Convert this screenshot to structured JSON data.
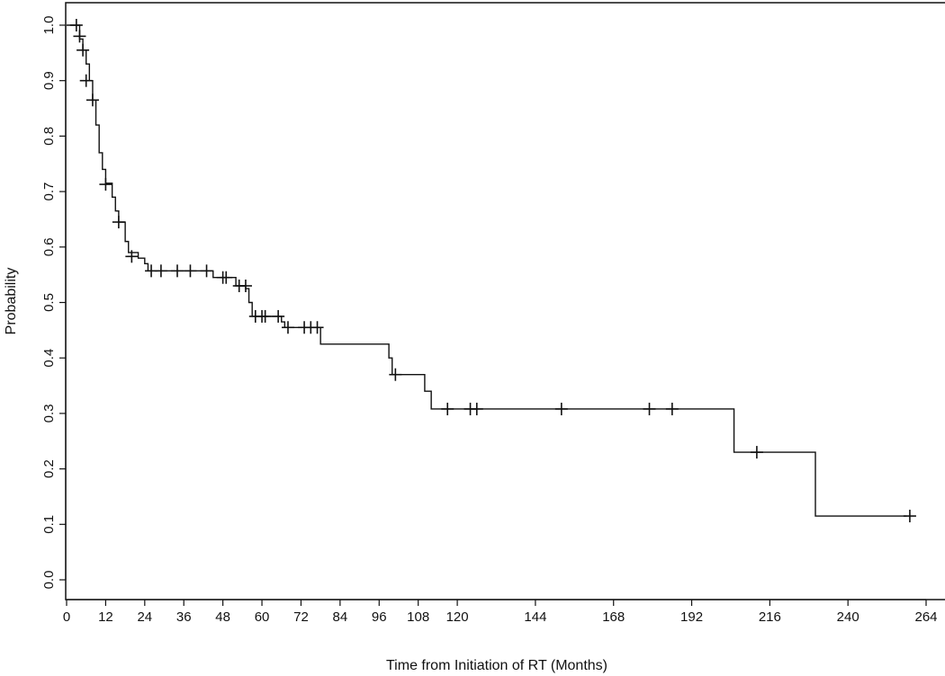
{
  "chart_data": {
    "type": "line",
    "subtype": "kaplan-meier survival curve",
    "xlabel": "Time from Initiation of RT (Months)",
    "ylabel": "Probability",
    "xlim": [
      0,
      264
    ],
    "ylim": [
      0,
      1.0
    ],
    "x_ticks": [
      0,
      12,
      24,
      36,
      48,
      60,
      72,
      84,
      96,
      108,
      120,
      144,
      168,
      192,
      216,
      240,
      264
    ],
    "y_ticks": [
      0.0,
      0.1,
      0.2,
      0.3,
      0.4,
      0.5,
      0.6,
      0.7,
      0.8,
      0.9,
      1.0
    ],
    "x_tick_labels": [
      "0",
      "12",
      "24",
      "36",
      "48",
      "60",
      "72",
      "84",
      "96",
      "108",
      "120",
      "144",
      "168",
      "192",
      "216",
      "240",
      "264"
    ],
    "y_tick_labels": [
      "0.0",
      "0.1",
      "0.2",
      "0.3",
      "0.4",
      "0.5",
      "0.6",
      "0.7",
      "0.8",
      "0.9",
      "1.0"
    ],
    "grid": false,
    "legend": "none",
    "line_color": "#111111",
    "steps": [
      [
        0,
        1.0
      ],
      [
        4,
        0.975
      ],
      [
        5,
        0.955
      ],
      [
        6,
        0.93
      ],
      [
        7,
        0.9
      ],
      [
        8,
        0.865
      ],
      [
        9,
        0.82
      ],
      [
        10,
        0.77
      ],
      [
        11,
        0.74
      ],
      [
        12,
        0.715
      ],
      [
        14,
        0.69
      ],
      [
        15,
        0.665
      ],
      [
        16,
        0.645
      ],
      [
        18,
        0.61
      ],
      [
        19,
        0.59
      ],
      [
        22,
        0.58
      ],
      [
        24,
        0.57
      ],
      [
        25,
        0.557
      ],
      [
        45,
        0.545
      ],
      [
        52,
        0.53
      ],
      [
        55,
        0.525
      ],
      [
        56,
        0.5
      ],
      [
        57,
        0.475
      ],
      [
        66,
        0.465
      ],
      [
        67,
        0.455
      ],
      [
        78,
        0.425
      ],
      [
        99,
        0.4
      ],
      [
        100,
        0.37
      ],
      [
        110,
        0.34
      ],
      [
        112,
        0.308
      ],
      [
        205,
        0.23
      ],
      [
        230,
        0.115
      ],
      [
        258,
        0.115
      ]
    ],
    "censored": [
      [
        3,
        1.0
      ],
      [
        4,
        0.98
      ],
      [
        5,
        0.955
      ],
      [
        6,
        0.9
      ],
      [
        8,
        0.865
      ],
      [
        12,
        0.713
      ],
      [
        16,
        0.645
      ],
      [
        20,
        0.583
      ],
      [
        26,
        0.557
      ],
      [
        29,
        0.557
      ],
      [
        34,
        0.557
      ],
      [
        38,
        0.557
      ],
      [
        43,
        0.557
      ],
      [
        48,
        0.545
      ],
      [
        49,
        0.545
      ],
      [
        53,
        0.53
      ],
      [
        55,
        0.53
      ],
      [
        58,
        0.475
      ],
      [
        60,
        0.475
      ],
      [
        61,
        0.475
      ],
      [
        65,
        0.475
      ],
      [
        68,
        0.455
      ],
      [
        73,
        0.455
      ],
      [
        75,
        0.455
      ],
      [
        77,
        0.455
      ],
      [
        101,
        0.37
      ],
      [
        117,
        0.308
      ],
      [
        124,
        0.308
      ],
      [
        126,
        0.308
      ],
      [
        152,
        0.308
      ],
      [
        179,
        0.308
      ],
      [
        186,
        0.308
      ],
      [
        212,
        0.23
      ],
      [
        259,
        0.115
      ]
    ]
  }
}
